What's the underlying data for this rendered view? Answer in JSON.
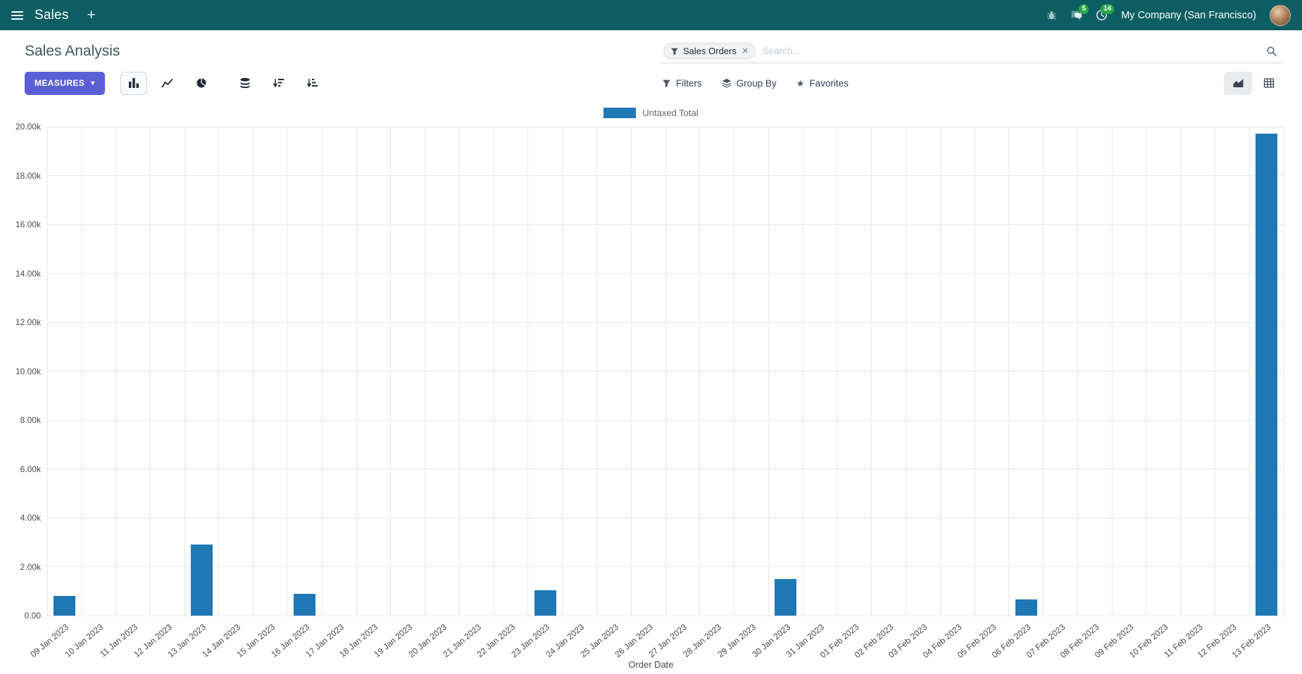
{
  "colors": {
    "navbar-bg": "#0d5e63",
    "primary": "#5b5fd6",
    "bar": "#1f77b4",
    "badge-green": "#28a745",
    "grid": "#e7e7e7"
  },
  "icons": {
    "plus": "+",
    "caret_down": "▾",
    "close": "×",
    "star": "★"
  },
  "navbar": {
    "app_name": "Sales",
    "chat_badge": "5",
    "activity_badge": "14",
    "company": "My Company (San Francisco)"
  },
  "control_panel": {
    "title": "Sales Analysis",
    "measures_label": "MEASURES",
    "search": {
      "facet": "Sales Orders",
      "placeholder": "Search..."
    },
    "filters_label": "Filters",
    "group_by_label": "Group By",
    "favorites_label": "Favorites"
  },
  "chart_data": {
    "type": "bar",
    "title": "",
    "xlabel": "Order Date",
    "ylabel": "",
    "ylim": [
      0,
      20000
    ],
    "grid": true,
    "legend_position": "top-center",
    "yticks": [
      "0.00",
      "2.00k",
      "4.00k",
      "6.00k",
      "8.00k",
      "10.00k",
      "12.00k",
      "14.00k",
      "16.00k",
      "18.00k",
      "20.00k"
    ],
    "categories": [
      "09 Jan 2023",
      "10 Jan 2023",
      "11 Jan 2023",
      "12 Jan 2023",
      "13 Jan 2023",
      "14 Jan 2023",
      "15 Jan 2023",
      "16 Jan 2023",
      "17 Jan 2023",
      "18 Jan 2023",
      "19 Jan 2023",
      "20 Jan 2023",
      "21 Jan 2023",
      "22 Jan 2023",
      "23 Jan 2023",
      "24 Jan 2023",
      "25 Jan 2023",
      "26 Jan 2023",
      "27 Jan 2023",
      "28 Jan 2023",
      "29 Jan 2023",
      "30 Jan 2023",
      "31 Jan 2023",
      "01 Feb 2023",
      "02 Feb 2023",
      "03 Feb 2023",
      "04 Feb 2023",
      "05 Feb 2023",
      "06 Feb 2023",
      "07 Feb 2023",
      "08 Feb 2023",
      "09 Feb 2023",
      "10 Feb 2023",
      "11 Feb 2023",
      "12 Feb 2023",
      "13 Feb 2023"
    ],
    "series": [
      {
        "name": "Untaxed Total",
        "color": "#1f77b4",
        "values": [
          800,
          0,
          0,
          0,
          2900,
          0,
          0,
          900,
          0,
          0,
          0,
          0,
          0,
          0,
          1050,
          0,
          0,
          0,
          0,
          0,
          0,
          1500,
          0,
          0,
          0,
          0,
          0,
          0,
          650,
          0,
          0,
          0,
          0,
          0,
          0,
          19700
        ]
      }
    ]
  }
}
